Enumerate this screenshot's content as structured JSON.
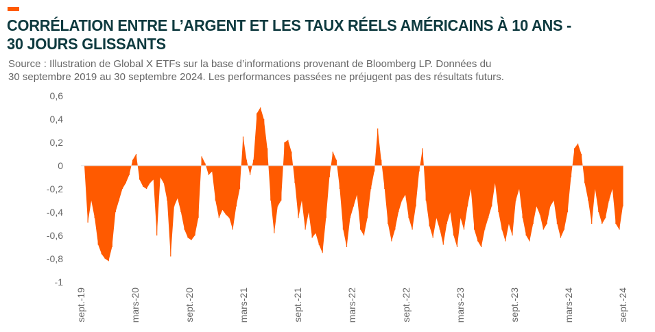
{
  "header": {
    "accent_color": "#ff5a00",
    "title_line1": "CORRÉLATION ENTRE L’ARGENT ET LES TAUX RÉELS AMÉRICAINS À 10 ANS -",
    "title_line2": "30 JOURS GLISSANTS",
    "source_line1": "Source : Illustration de Global X ETFs sur la base d’informations provenant de Bloomberg LP. Données du",
    "source_line2": "30 septembre 2019 au 30 septembre 2024. Les performances passées ne préjugent pas des résultats futurs."
  },
  "chart_data": {
    "type": "area",
    "title": "Corrélation entre l’argent et les taux réels américains à 10 ans - 30 jours glissants",
    "xlabel": "",
    "ylabel": "",
    "ylim": [
      -1,
      0.6
    ],
    "yticks": [
      0.6,
      0.4,
      0.2,
      0,
      -0.2,
      -0.4,
      -0.6,
      -0.8,
      -1
    ],
    "ytick_labels": [
      "0,6",
      "0,4",
      "0,2",
      "0",
      "-0,2",
      "-0,4",
      "-0,6",
      "-0,8",
      "-1"
    ],
    "x_range": [
      "2019-09-30",
      "2024-09-30"
    ],
    "xtick_labels": [
      "sept.-19",
      "mars-20",
      "sept.-20",
      "mars-21",
      "sept.-21",
      "mars-22",
      "sept.-22",
      "mars-23",
      "sept.-23",
      "mars-24",
      "sept.-24"
    ],
    "xtick_positions_months": [
      0,
      6,
      12,
      18,
      24,
      30,
      36,
      42,
      48,
      54,
      60
    ],
    "grid": false,
    "legend": "none",
    "series": [
      {
        "name": "Corrélation 30 jours",
        "color": "#ff5a00",
        "x_months": "evenly spaced from 0 to 60",
        "values": [
          0,
          0,
          -0.49,
          -0.3,
          -0.45,
          -0.68,
          -0.76,
          -0.8,
          -0.82,
          -0.7,
          -0.4,
          -0.3,
          -0.2,
          -0.15,
          -0.08,
          0.05,
          0.1,
          -0.12,
          -0.18,
          -0.2,
          -0.15,
          -0.12,
          -0.6,
          -0.1,
          -0.15,
          -0.3,
          -0.78,
          -0.35,
          -0.28,
          -0.4,
          -0.55,
          -0.62,
          -0.64,
          -0.6,
          -0.45,
          0.08,
          0.02,
          -0.08,
          -0.05,
          -0.3,
          -0.45,
          -0.38,
          -0.42,
          -0.45,
          -0.55,
          -0.35,
          -0.2,
          0.25,
          0.05,
          -0.08,
          0.05,
          0.45,
          0.5,
          0.4,
          0.15,
          -0.3,
          -0.58,
          -0.35,
          -0.3,
          0.2,
          0.22,
          0.12,
          -0.15,
          -0.45,
          -0.3,
          -0.55,
          -0.4,
          -0.62,
          -0.58,
          -0.68,
          -0.75,
          -0.45,
          -0.1,
          0.12,
          0.05,
          -0.2,
          -0.55,
          -0.7,
          -0.45,
          -0.35,
          -0.25,
          -0.55,
          -0.6,
          -0.45,
          -0.2,
          -0.05,
          0.32,
          0.05,
          -0.2,
          -0.5,
          -0.65,
          -0.55,
          -0.4,
          -0.3,
          -0.25,
          -0.45,
          -0.55,
          -0.35,
          -0.05,
          0.15,
          -0.3,
          -0.52,
          -0.62,
          -0.45,
          -0.55,
          -0.68,
          -0.5,
          -0.4,
          -0.6,
          -0.7,
          -0.45,
          -0.55,
          -0.35,
          -0.2,
          -0.55,
          -0.65,
          -0.7,
          -0.55,
          -0.45,
          -0.35,
          -0.15,
          -0.4,
          -0.55,
          -0.65,
          -0.5,
          -0.6,
          -0.3,
          -0.2,
          -0.45,
          -0.6,
          -0.65,
          -0.5,
          -0.35,
          -0.42,
          -0.55,
          -0.5,
          -0.35,
          -0.3,
          -0.5,
          -0.62,
          -0.55,
          -0.4,
          -0.1,
          0.15,
          0.19,
          0.1,
          -0.15,
          -0.3,
          -0.5,
          -0.2,
          -0.4,
          -0.5,
          -0.45,
          -0.3,
          -0.2,
          -0.5,
          -0.55,
          -0.35
        ]
      }
    ]
  }
}
